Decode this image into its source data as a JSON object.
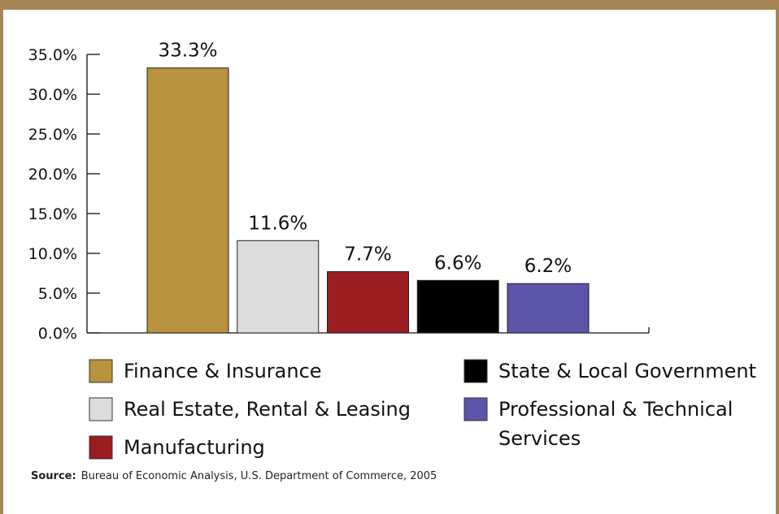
{
  "chart_data": {
    "type": "bar",
    "categories": [
      "Finance & Insurance",
      "Real Estate, Rental & Leasing",
      "Manufacturing",
      "State & Local Government",
      "Professional & Technical Services"
    ],
    "values": [
      33.3,
      11.6,
      7.7,
      6.6,
      6.2
    ],
    "data_labels": [
      "33.3%",
      "11.6%",
      "7.7%",
      "6.6%",
      "6.2%"
    ],
    "colors": [
      "#b8923f",
      "#dcdcdc",
      "#9b1c21",
      "#000000",
      "#5b54a8"
    ],
    "ylim": [
      0,
      35
    ],
    "yticks": [
      "0.0%",
      "5.0%",
      "10.0%",
      "15.0%",
      "20.0%",
      "25.0%",
      "30.0%",
      "35.0%"
    ],
    "grid": false,
    "legend": {
      "placement": "bottom",
      "left_column": [
        {
          "index": 0,
          "lines": [
            "Finance & Insurance"
          ]
        },
        {
          "index": 1,
          "lines": [
            "Real Estate, Rental & Leasing"
          ]
        },
        {
          "index": 2,
          "lines": [
            "Manufacturing"
          ]
        }
      ],
      "right_column": [
        {
          "index": 3,
          "lines": [
            "State & Local Government"
          ]
        },
        {
          "index": 4,
          "lines": [
            "Professional & Technical",
            "Services"
          ]
        }
      ]
    }
  },
  "source": {
    "label": "Source:",
    "text": "Bureau of Economic Analysis, U.S. Department of Commerce, 2005"
  },
  "frame_color": "#a68654"
}
